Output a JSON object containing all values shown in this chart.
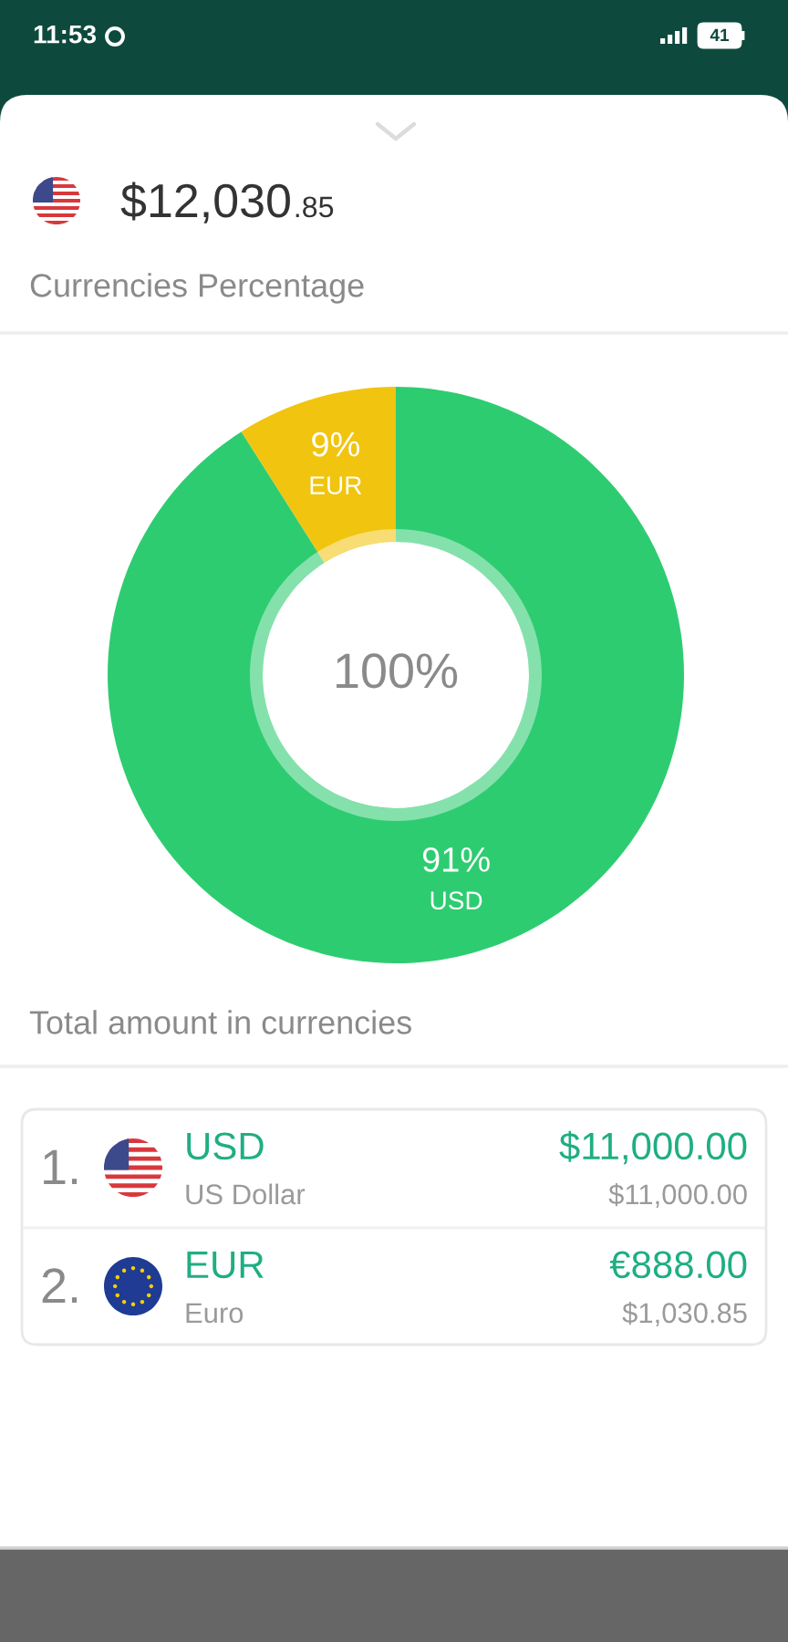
{
  "chart_data": {
    "type": "donut",
    "title": "Currencies Percentage",
    "categories": [
      "USD",
      "EUR"
    ],
    "values": [
      91,
      9
    ],
    "colors": [
      "#2ecc71",
      "#f1c40f"
    ],
    "value_labels": [
      "91%",
      "9%"
    ],
    "annotations": [
      "11:53",
      "41",
      "$12,030.85",
      "100%",
      "Total amount in currencies",
      "1.",
      "USD",
      "US Dollar",
      "$11,000.00",
      "$11,000.00",
      "2.",
      "EUR",
      "Euro",
      "€888.00",
      "$1,030.85"
    ]
  }
}
